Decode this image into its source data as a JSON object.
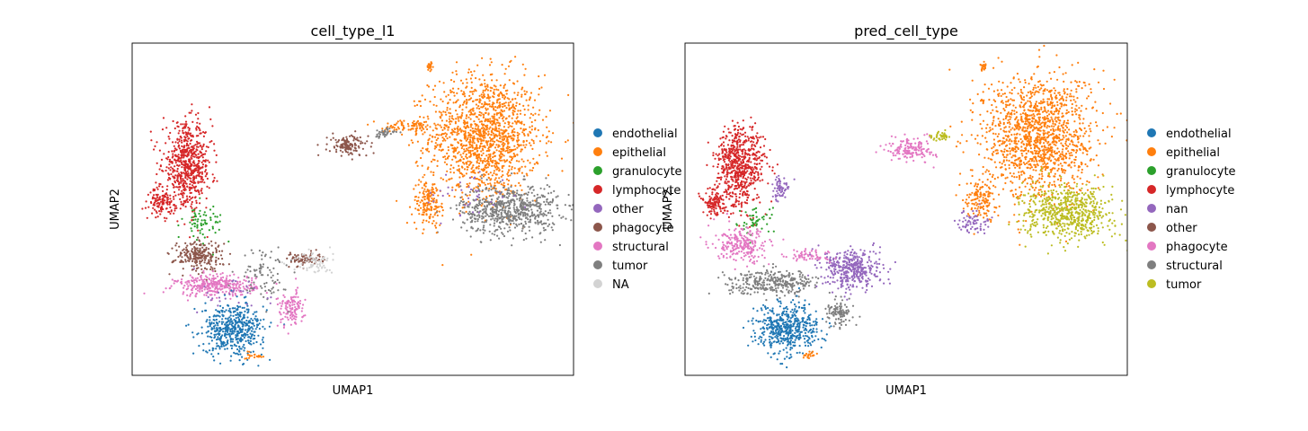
{
  "chart_data": [
    {
      "type": "scatter",
      "title": "cell_type_l1",
      "xlabel": "UMAP1",
      "ylabel": "UMAP2",
      "legend_placement": "right",
      "grid": false,
      "legend": [
        {
          "label": "endothelial",
          "color": "#1f77b4"
        },
        {
          "label": "epithelial",
          "color": "#ff7f0e"
        },
        {
          "label": "granulocyte",
          "color": "#2ca02c"
        },
        {
          "label": "lymphocyte",
          "color": "#d62728"
        },
        {
          "label": "other",
          "color": "#9467bd"
        },
        {
          "label": "phagocyte",
          "color": "#8c564b"
        },
        {
          "label": "structural",
          "color": "#e377c2"
        },
        {
          "label": "tumor",
          "color": "#7f7f7f"
        },
        {
          "label": "NA",
          "color": "#d3d3d3"
        }
      ],
      "xlim": [
        0,
        10
      ],
      "ylim": [
        0,
        10
      ],
      "clusters": [
        {
          "label": "epithelial",
          "cx": 8.0,
          "cy": 7.2,
          "rx": 1.25,
          "ry": 1.85,
          "n": 1400
        },
        {
          "label": "tumor",
          "cx": 8.55,
          "cy": 5.0,
          "rx": 1.1,
          "ry": 0.75,
          "n": 650
        },
        {
          "label": "epithelial",
          "cx": 6.7,
          "cy": 5.2,
          "rx": 0.35,
          "ry": 0.7,
          "n": 160
        },
        {
          "label": "other",
          "cx": 7.6,
          "cy": 5.4,
          "rx": 1.0,
          "ry": 0.8,
          "n": 40
        },
        {
          "label": "epithelial",
          "cx": 6.3,
          "cy": 7.5,
          "rx": 0.6,
          "ry": 0.2,
          "n": 90
        },
        {
          "label": "phagocyte",
          "cx": 4.9,
          "cy": 6.9,
          "rx": 0.45,
          "ry": 0.32,
          "n": 130
        },
        {
          "label": "tumor",
          "cx": 5.7,
          "cy": 7.3,
          "rx": 0.25,
          "ry": 0.15,
          "n": 40
        },
        {
          "label": "epithelial",
          "cx": 6.75,
          "cy": 9.3,
          "rx": 0.08,
          "ry": 0.12,
          "n": 25
        },
        {
          "label": "lymphocyte",
          "cx": 1.25,
          "cy": 6.3,
          "rx": 0.55,
          "ry": 1.25,
          "n": 650
        },
        {
          "label": "lymphocyte",
          "cx": 0.65,
          "cy": 5.2,
          "rx": 0.25,
          "ry": 0.4,
          "n": 120
        },
        {
          "label": "granulocyte",
          "cx": 1.6,
          "cy": 4.6,
          "rx": 0.45,
          "ry": 0.55,
          "n": 70
        },
        {
          "label": "phagocyte",
          "cx": 1.5,
          "cy": 3.6,
          "rx": 0.55,
          "ry": 0.45,
          "n": 230
        },
        {
          "label": "structural",
          "cx": 1.9,
          "cy": 2.7,
          "rx": 0.9,
          "ry": 0.32,
          "n": 320
        },
        {
          "label": "endothelial",
          "cx": 2.3,
          "cy": 1.4,
          "rx": 0.7,
          "ry": 0.75,
          "n": 500
        },
        {
          "label": "tumor",
          "cx": 3.0,
          "cy": 3.0,
          "rx": 0.55,
          "ry": 0.8,
          "n": 90
        },
        {
          "label": "structural",
          "cx": 3.6,
          "cy": 2.0,
          "rx": 0.3,
          "ry": 0.55,
          "n": 120
        },
        {
          "label": "phagocyte",
          "cx": 3.9,
          "cy": 3.5,
          "rx": 0.4,
          "ry": 0.2,
          "n": 80
        },
        {
          "label": "NA",
          "cx": 4.1,
          "cy": 3.4,
          "rx": 0.45,
          "ry": 0.35,
          "n": 70
        },
        {
          "label": "other",
          "cx": 2.4,
          "cy": 2.4,
          "rx": 0.8,
          "ry": 0.8,
          "n": 30
        },
        {
          "label": "epithelial",
          "cx": 2.8,
          "cy": 0.6,
          "rx": 0.2,
          "ry": 0.1,
          "n": 20
        }
      ]
    },
    {
      "type": "scatter",
      "title": "pred_cell_type",
      "xlabel": "UMAP1",
      "ylabel": "UMAP2",
      "legend_placement": "right",
      "grid": false,
      "legend": [
        {
          "label": "endothelial",
          "color": "#1f77b4"
        },
        {
          "label": "epithelial",
          "color": "#ff7f0e"
        },
        {
          "label": "granulocyte",
          "color": "#2ca02c"
        },
        {
          "label": "lymphocyte",
          "color": "#d62728"
        },
        {
          "label": "nan",
          "color": "#9467bd"
        },
        {
          "label": "other",
          "color": "#8c564b"
        },
        {
          "label": "phagocyte",
          "color": "#e377c2"
        },
        {
          "label": "structural",
          "color": "#7f7f7f"
        },
        {
          "label": "tumor",
          "color": "#bcbd22"
        }
      ],
      "xlim": [
        0,
        10
      ],
      "ylim": [
        0,
        10
      ],
      "clusters": [
        {
          "label": "epithelial",
          "cx": 8.0,
          "cy": 7.2,
          "rx": 1.25,
          "ry": 1.85,
          "n": 1400
        },
        {
          "label": "tumor",
          "cx": 8.65,
          "cy": 4.9,
          "rx": 1.0,
          "ry": 0.8,
          "n": 650
        },
        {
          "label": "epithelial",
          "cx": 6.7,
          "cy": 5.4,
          "rx": 0.35,
          "ry": 0.7,
          "n": 150
        },
        {
          "label": "nan",
          "cx": 6.5,
          "cy": 4.6,
          "rx": 0.35,
          "ry": 0.35,
          "n": 70
        },
        {
          "label": "phagocyte",
          "cx": 5.1,
          "cy": 6.8,
          "rx": 0.55,
          "ry": 0.35,
          "n": 150
        },
        {
          "label": "tumor",
          "cx": 5.8,
          "cy": 7.2,
          "rx": 0.2,
          "ry": 0.13,
          "n": 40
        },
        {
          "label": "epithelial",
          "cx": 6.75,
          "cy": 9.3,
          "rx": 0.08,
          "ry": 0.12,
          "n": 25
        },
        {
          "label": "lymphocyte",
          "cx": 1.25,
          "cy": 6.3,
          "rx": 0.55,
          "ry": 1.25,
          "n": 650
        },
        {
          "label": "lymphocyte",
          "cx": 0.65,
          "cy": 5.2,
          "rx": 0.25,
          "ry": 0.4,
          "n": 120
        },
        {
          "label": "nan",
          "cx": 2.15,
          "cy": 5.6,
          "rx": 0.2,
          "ry": 0.35,
          "n": 60
        },
        {
          "label": "granulocyte",
          "cx": 1.6,
          "cy": 4.6,
          "rx": 0.4,
          "ry": 0.5,
          "n": 50
        },
        {
          "label": "phagocyte",
          "cx": 1.3,
          "cy": 3.9,
          "rx": 0.6,
          "ry": 0.5,
          "n": 230
        },
        {
          "label": "structural",
          "cx": 2.0,
          "cy": 2.8,
          "rx": 1.0,
          "ry": 0.35,
          "n": 320
        },
        {
          "label": "endothelial",
          "cx": 2.3,
          "cy": 1.4,
          "rx": 0.7,
          "ry": 0.75,
          "n": 500
        },
        {
          "label": "nan",
          "cx": 3.8,
          "cy": 3.2,
          "rx": 0.65,
          "ry": 0.6,
          "n": 380
        },
        {
          "label": "structural",
          "cx": 3.5,
          "cy": 1.9,
          "rx": 0.3,
          "ry": 0.4,
          "n": 110
        },
        {
          "label": "phagocyte",
          "cx": 2.8,
          "cy": 3.6,
          "rx": 0.5,
          "ry": 0.2,
          "n": 60
        },
        {
          "label": "epithelial",
          "cx": 2.8,
          "cy": 0.6,
          "rx": 0.2,
          "ry": 0.1,
          "n": 20
        }
      ]
    }
  ]
}
